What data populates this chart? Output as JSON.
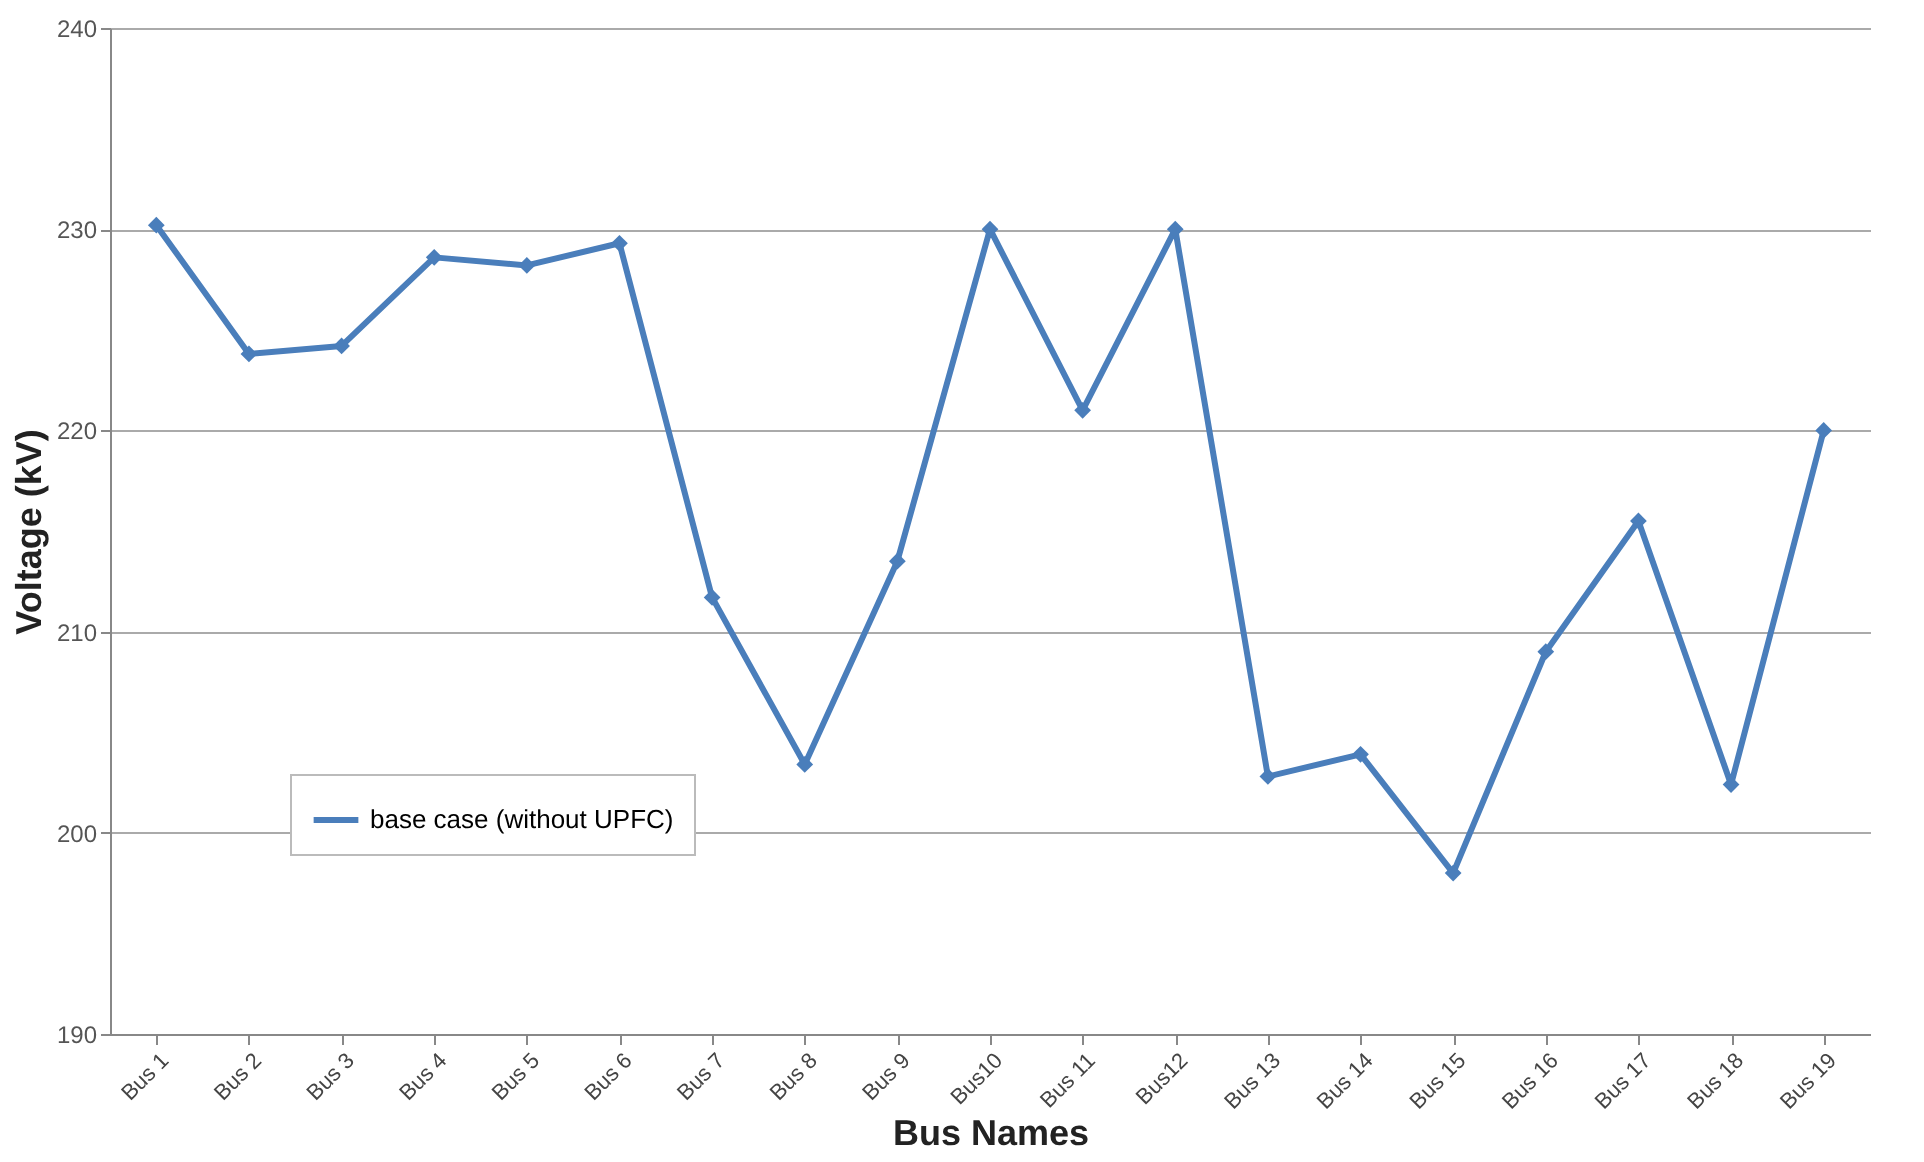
{
  "chart_data": {
    "type": "line",
    "xlabel": "Bus Names",
    "ylabel": "Voltage (kV)",
    "categories": [
      "Bus 1",
      "Bus 2",
      "Bus 3",
      "Bus 4",
      "Bus 5",
      "Bus 6",
      "Bus 7",
      "Bus 8",
      "Bus 9",
      "Bus10",
      "Bus 11",
      "Bus12",
      "Bus 13",
      "Bus 14",
      "Bus 15",
      "Bus 16",
      "Bus 17",
      "Bus 18",
      "Bus 19"
    ],
    "series": [
      {
        "name": "base case (without UPFC)",
        "color": "#4a7ebb",
        "values": [
          230.2,
          223.8,
          224.2,
          228.6,
          228.2,
          229.3,
          211.7,
          203.4,
          213.5,
          230.0,
          221.0,
          230.0,
          202.8,
          203.9,
          198.0,
          209.0,
          215.5,
          202.4,
          220.0
        ]
      }
    ],
    "ylim": [
      190,
      240
    ],
    "yticks": [
      190,
      200,
      210,
      220,
      230,
      240
    ],
    "grid": "y",
    "legend": "bottom left",
    "marker": "diamond",
    "line_style": "solid"
  }
}
